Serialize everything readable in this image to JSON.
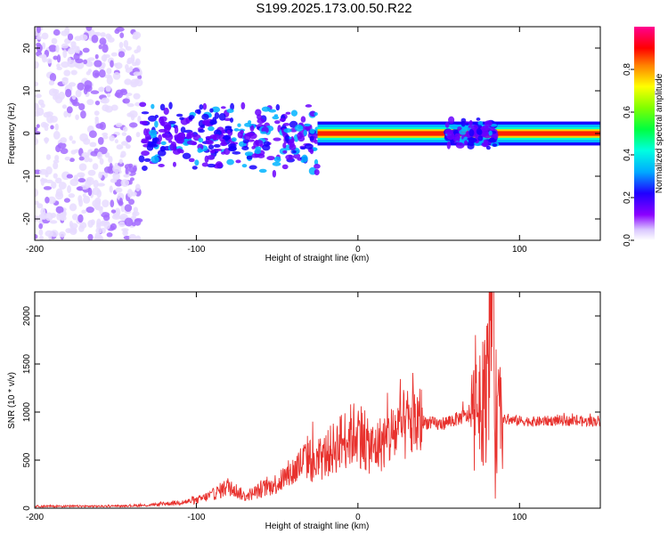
{
  "title": "S199.2025.173.00.50.R22",
  "chart_data": [
    {
      "type": "heatmap",
      "title": "",
      "xlabel": "Height of straight line (km)",
      "ylabel": "Frequency (Hz)",
      "xlim": [
        -200,
        150
      ],
      "ylim": [
        -25,
        25
      ],
      "xticks": [
        -200,
        -100,
        0,
        100
      ],
      "yticks": [
        -20,
        -10,
        0,
        10,
        20
      ],
      "colorbar": {
        "label": "Normalized spectral amplitude",
        "range": [
          0,
          1
        ],
        "ticks": [
          0.0,
          0.2,
          0.4,
          0.6,
          0.8
        ],
        "colormap": "rainbow (purple-low to red/magenta-high)"
      },
      "regions": [
        {
          "x_range": [
            -200,
            -135
          ],
          "freq_range": [
            -25,
            25
          ],
          "amplitude": "low",
          "note": "scattered noise blobs"
        },
        {
          "x_range": [
            -135,
            -25
          ],
          "freq_range": [
            -10,
            8
          ],
          "amplitude": "medium",
          "note": "speckled band"
        },
        {
          "x_range": [
            -25,
            150
          ],
          "freq_center": 0,
          "freq_halfwidth": 1,
          "amplitude": "high",
          "note": "narrow band at 0 Hz"
        },
        {
          "x_range": [
            55,
            85
          ],
          "freq_range": [
            -4,
            4
          ],
          "amplitude": "medium",
          "note": "bulge in band"
        }
      ],
      "grid": false
    },
    {
      "type": "line",
      "title": "",
      "xlabel": "Height of straight line (km)",
      "ylabel": "SNR (10 * v/v)",
      "xlim": [
        -200,
        150
      ],
      "ylim": [
        0,
        2250
      ],
      "xticks": [
        -200,
        -100,
        0,
        100
      ],
      "yticks": [
        0,
        500,
        1000,
        1500,
        2000
      ],
      "series": [
        {
          "color": "#e8322e",
          "x": [
            -200,
            -180,
            -160,
            -140,
            -130,
            -120,
            -110,
            -100,
            -90,
            -80,
            -75,
            -70,
            -60,
            -50,
            -40,
            -30,
            -28,
            -20,
            -10,
            0,
            5,
            10,
            20,
            30,
            40,
            50,
            60,
            65,
            70,
            75,
            80,
            82,
            84,
            86,
            88,
            90,
            100,
            110,
            120,
            130,
            140,
            150
          ],
          "y": [
            20,
            20,
            20,
            25,
            30,
            45,
            60,
            80,
            140,
            230,
            180,
            120,
            190,
            260,
            380,
            550,
            420,
            550,
            700,
            800,
            650,
            620,
            750,
            870,
            900,
            870,
            920,
            950,
            960,
            980,
            1200,
            2250,
            1500,
            900,
            1000,
            920,
            910,
            900,
            910,
            910,
            900,
            910
          ],
          "noise_spikes": [
            {
              "x": -28,
              "y": 900
            },
            {
              "x": 2,
              "y": 1060
            },
            {
              "x": 65,
              "y": 1110
            },
            {
              "x": 75,
              "y": 1420
            },
            {
              "x": 82,
              "y": 1950
            },
            {
              "x": 84,
              "y": 2250
            },
            {
              "x": 85,
              "y": 100
            }
          ]
        }
      ],
      "grid": false
    }
  ]
}
